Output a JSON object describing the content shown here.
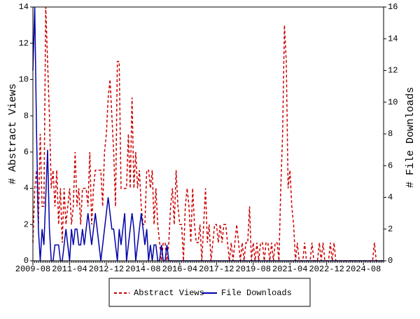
{
  "chart_data": {
    "type": "line",
    "categories": [
      "2009-08",
      null,
      null,
      null,
      null,
      null,
      null,
      null,
      null,
      null,
      null,
      null,
      null,
      null,
      null,
      null,
      null,
      null,
      null,
      null,
      "2011-04",
      null,
      null,
      null,
      null,
      null,
      null,
      null,
      null,
      null,
      null,
      null,
      null,
      null,
      null,
      null,
      null,
      null,
      null,
      null,
      "2012-12",
      null,
      null,
      null,
      null,
      null,
      null,
      null,
      null,
      null,
      null,
      null,
      null,
      null,
      null,
      null,
      null,
      null,
      null,
      null,
      "2014-08",
      null,
      null,
      null,
      null,
      null,
      null,
      null,
      null,
      null,
      null,
      null,
      null,
      null,
      null,
      null,
      null,
      null,
      null,
      null,
      "2016-04",
      null,
      null,
      null,
      null,
      null,
      null,
      null,
      null,
      null,
      null,
      null,
      null,
      null,
      null,
      null,
      null,
      null,
      null,
      null,
      "2017-12",
      null,
      null,
      null,
      null,
      null,
      null,
      null,
      null,
      null,
      null,
      null,
      null,
      null,
      null,
      null,
      null,
      null,
      null,
      null,
      "2019-08",
      null,
      null,
      null,
      null,
      null,
      null,
      null,
      null,
      null,
      null,
      null,
      null,
      null,
      null,
      null,
      null,
      null,
      null,
      null,
      "2021-04",
      null,
      null,
      null,
      null,
      null,
      null,
      null,
      null,
      null,
      null,
      null,
      null,
      null,
      null,
      null,
      null,
      null,
      null,
      null,
      "2022-12",
      null,
      null,
      null,
      null,
      null,
      null,
      null,
      null,
      null,
      null,
      null,
      null,
      null,
      null,
      null,
      null,
      null,
      null,
      null,
      "2024-08",
      null,
      null,
      null,
      null,
      null,
      null,
      null,
      null,
      null,
      null,
      null
    ],
    "ylabel": "# Abstract Views",
    "y2label": "# File Downloads",
    "ylim": [
      0,
      14
    ],
    "yticks": [
      0,
      2,
      4,
      6,
      8,
      10,
      12,
      14
    ],
    "y2lim": [
      0,
      16
    ],
    "y2ticks": [
      0,
      2,
      4,
      6,
      8,
      10,
      12,
      14,
      16
    ],
    "series": [
      {
        "name": "Abstract Views",
        "color": "#cc0000",
        "dashed": true,
        "values": [
          1,
          4,
          5,
          2,
          7,
          3,
          3,
          14,
          11,
          8,
          4,
          5,
          3,
          5,
          2,
          4,
          1,
          4,
          2,
          3,
          4,
          2,
          3,
          6,
          3,
          4,
          2,
          4,
          4,
          4,
          3,
          6,
          2,
          4,
          5,
          5,
          5,
          5,
          3,
          6,
          7,
          9,
          10,
          8,
          6,
          3,
          11,
          11,
          4,
          4,
          4,
          4,
          7,
          4,
          9,
          4,
          6,
          4,
          5,
          3,
          2,
          2,
          5,
          5,
          4,
          5,
          2,
          4,
          2,
          1,
          0,
          1,
          1,
          0,
          1,
          3,
          4,
          2,
          5,
          3,
          2,
          2,
          0,
          3,
          4,
          3,
          1,
          4,
          2,
          1,
          1,
          2,
          0,
          2,
          4,
          1,
          2,
          0,
          1,
          2,
          2,
          1,
          2,
          1,
          2,
          2,
          1,
          0,
          1,
          0,
          1,
          2,
          1,
          0,
          1,
          0,
          1,
          1,
          3,
          0,
          1,
          0,
          1,
          0,
          1,
          1,
          0,
          1,
          1,
          0,
          1,
          0,
          1,
          1,
          0,
          4,
          7,
          13,
          11,
          4,
          5,
          3,
          2,
          0,
          1,
          0,
          0,
          0,
          1,
          0,
          0,
          0,
          1,
          0,
          0,
          0,
          1,
          0,
          1,
          0,
          0,
          0,
          1,
          0,
          1,
          0,
          0,
          0,
          0,
          0,
          0,
          0,
          0,
          0,
          0,
          0,
          0,
          0,
          0,
          0,
          0,
          0,
          0,
          0,
          0,
          0,
          1,
          0,
          0,
          0,
          0,
          0
        ]
      },
      {
        "name": "File Downloads",
        "color": "#0000aa",
        "dashed": false,
        "axis": "y2",
        "values": [
          12,
          16,
          8,
          2,
          0,
          2,
          1,
          4,
          7,
          2,
          0,
          0,
          1,
          1,
          1,
          0,
          0,
          1,
          2,
          1,
          0,
          2,
          1,
          2,
          2,
          1,
          1,
          2,
          1,
          2,
          3,
          2,
          1,
          2,
          3,
          2,
          1,
          0,
          1,
          2,
          3,
          4,
          3,
          2,
          2,
          1,
          0,
          2,
          1,
          2,
          3,
          0,
          1,
          2,
          3,
          2,
          0,
          1,
          2,
          3,
          2,
          1,
          2,
          0,
          1,
          0,
          1,
          1,
          0,
          0,
          1,
          0,
          0,
          1,
          0,
          0,
          0,
          0,
          0,
          0,
          0,
          0,
          0,
          0,
          0,
          0,
          0,
          0,
          0,
          0,
          0,
          0,
          0,
          0,
          0,
          0,
          0,
          0,
          0,
          0,
          0,
          0,
          0,
          0,
          0,
          0,
          0,
          0,
          0,
          0,
          0,
          0,
          0,
          0,
          0,
          0,
          0,
          0,
          0,
          0,
          0,
          0,
          0,
          0,
          0,
          0,
          0,
          0,
          0,
          0,
          0,
          0,
          0,
          0,
          0,
          0,
          0,
          0,
          0,
          0,
          0,
          0,
          0,
          0,
          0,
          0,
          0,
          0,
          0,
          0,
          0,
          0,
          0,
          0,
          0,
          0,
          0,
          0,
          0,
          0,
          0,
          0,
          0,
          0,
          0,
          0,
          0,
          0,
          0,
          0,
          0,
          0,
          0,
          0,
          0,
          0,
          0,
          0,
          0,
          0,
          0,
          0,
          0,
          0,
          0,
          0,
          0,
          0,
          0,
          0,
          0,
          0
        ]
      }
    ]
  }
}
